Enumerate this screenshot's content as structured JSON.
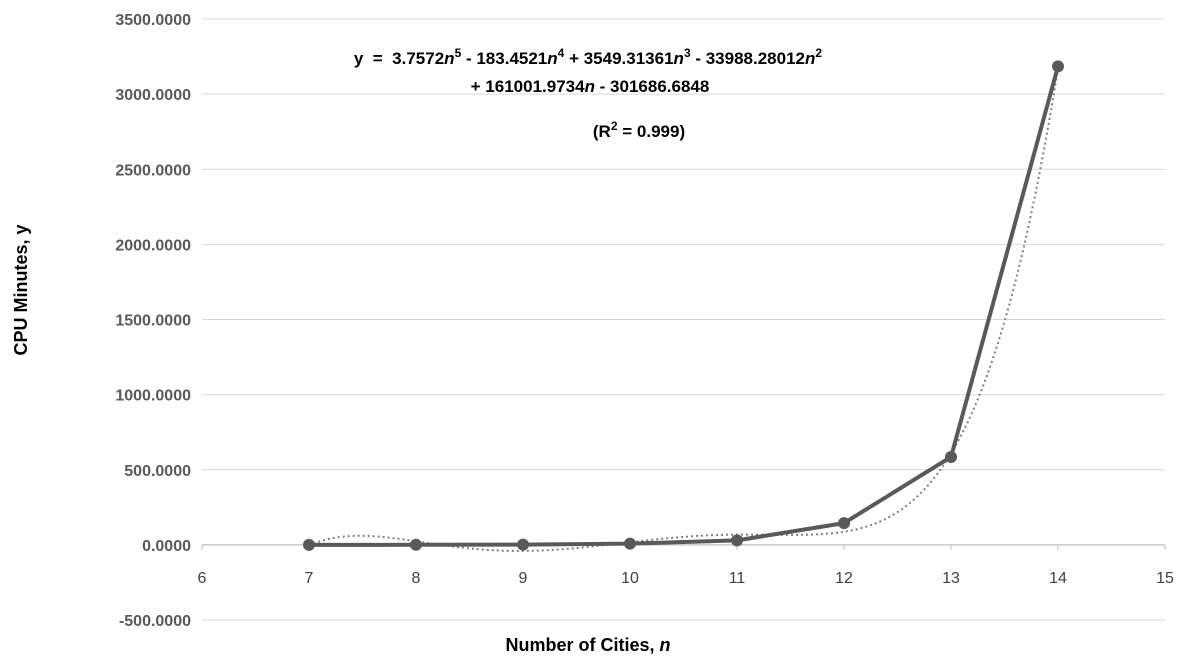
{
  "chart_data": {
    "type": "scatter",
    "xlabel": "Number of Cities, ",
    "xlabel_var": "n",
    "ylabel": "CPU Minutes, y",
    "xlim": [
      6,
      15
    ],
    "ylim": [
      -500,
      3500
    ],
    "xticks": [
      6,
      7,
      8,
      9,
      10,
      11,
      12,
      13,
      14,
      15
    ],
    "yticks": [
      -500,
      0,
      500,
      1000,
      1500,
      2000,
      2500,
      3000,
      3500
    ],
    "ytick_labels": [
      "-500.0000",
      "0.0000",
      "500.0000",
      "1000.0000",
      "1500.0000",
      "2000.0000",
      "2500.0000",
      "3000.0000",
      "3500.0000"
    ],
    "grid": true,
    "legend": "none",
    "series": [
      {
        "x": [
          7,
          8,
          9,
          10,
          11,
          12,
          13,
          14
        ],
        "values": [
          0.2,
          0.5,
          1.5,
          8,
          30,
          145,
          585,
          3185
        ],
        "color": "#595959",
        "marker": "circle",
        "line": "solid"
      }
    ],
    "trendline": {
      "kind": "polynomial-order-5",
      "coefficients": [
        3.7572,
        -183.4521,
        3549.31361,
        -33988.28012,
        161001.9734,
        -301686.6848
      ],
      "color": "#7f7f7f",
      "style": "dotted"
    },
    "annotation": {
      "line1_parts": [
        "y  =  3.7572",
        "n",
        "5",
        " - 183.4521",
        "n",
        "4",
        " + 3549.31361",
        "n",
        "3",
        " - 33988.28012",
        "n",
        "2"
      ],
      "line2_parts": [
        "+ 161001.9734",
        "n",
        " - 301686.6848"
      ],
      "line3_parts": [
        "(R",
        "2",
        " = 0.999)"
      ]
    }
  }
}
